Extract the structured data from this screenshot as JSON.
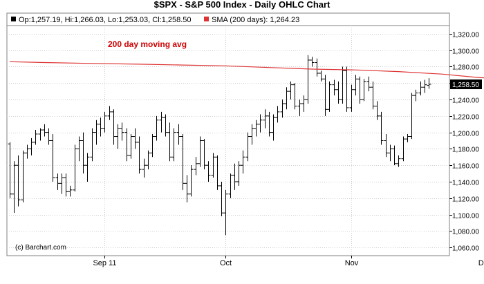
{
  "title": "$SPX - S&P 500 Index - Daily OHLC Chart",
  "legend": {
    "ohlc_text": "Op:1,257.19, Hi:1,266.03, Lo:1,253.03, Cl:1,258.50",
    "sma_text": "SMA (200 days): 1,264.23"
  },
  "colors": {
    "price": "#000000",
    "sma": "#dd3333",
    "grid": "#cfcfcf",
    "last_tag": "#000000"
  },
  "annotation": "200 day moving avg",
  "last_price_label": "1,258.50",
  "credit": "(c) Barchart.com",
  "chart_data": {
    "type": "ohlc",
    "ylim": [
      1050,
      1330
    ],
    "y_ticks": [
      "1,060.00",
      "1,080.00",
      "1,100.00",
      "1,120.00",
      "1,140.00",
      "1,160.00",
      "1,180.00",
      "1,200.00",
      "1,220.00",
      "1,240.00",
      "1,260.00",
      "1,280.00",
      "1,300.00",
      "1,320.00"
    ],
    "y_tick_values": [
      1060,
      1080,
      1100,
      1120,
      1140,
      1160,
      1180,
      1200,
      1220,
      1240,
      1260,
      1280,
      1300,
      1320
    ],
    "x_ticks": [
      {
        "label": "Sep 11",
        "index": 22
      },
      {
        "label": "Oct",
        "index": 50
      },
      {
        "label": "Nov",
        "index": 79
      },
      {
        "label": "Dec",
        "index": 110
      }
    ],
    "grid": true,
    "ohlc": [
      [
        1186,
        1188,
        1120,
        1125
      ],
      [
        1125,
        1165,
        1102,
        1160
      ],
      [
        1160,
        1172,
        1110,
        1118
      ],
      [
        1118,
        1178,
        1115,
        1175
      ],
      [
        1175,
        1185,
        1168,
        1180
      ],
      [
        1180,
        1193,
        1172,
        1188
      ],
      [
        1188,
        1203,
        1185,
        1198
      ],
      [
        1198,
        1205,
        1190,
        1203
      ],
      [
        1203,
        1210,
        1195,
        1200
      ],
      [
        1200,
        1205,
        1185,
        1190
      ],
      [
        1190,
        1198,
        1140,
        1145
      ],
      [
        1145,
        1150,
        1130,
        1138
      ],
      [
        1138,
        1150,
        1125,
        1145
      ],
      [
        1145,
        1150,
        1122,
        1128
      ],
      [
        1128,
        1135,
        1122,
        1130
      ],
      [
        1130,
        1185,
        1128,
        1180
      ],
      [
        1180,
        1195,
        1165,
        1190
      ],
      [
        1190,
        1200,
        1150,
        1160
      ],
      [
        1160,
        1175,
        1140,
        1170
      ],
      [
        1170,
        1205,
        1165,
        1200
      ],
      [
        1200,
        1215,
        1185,
        1210
      ],
      [
        1210,
        1218,
        1195,
        1205
      ],
      [
        1205,
        1225,
        1200,
        1220
      ],
      [
        1220,
        1232,
        1215,
        1225
      ],
      [
        1225,
        1228,
        1185,
        1195
      ],
      [
        1195,
        1210,
        1180,
        1205
      ],
      [
        1205,
        1212,
        1190,
        1200
      ],
      [
        1200,
        1205,
        1165,
        1172
      ],
      [
        1172,
        1198,
        1168,
        1195
      ],
      [
        1195,
        1205,
        1180,
        1188
      ],
      [
        1188,
        1195,
        1150,
        1155
      ],
      [
        1155,
        1168,
        1145,
        1160
      ],
      [
        1160,
        1178,
        1155,
        1175
      ],
      [
        1175,
        1198,
        1170,
        1195
      ],
      [
        1195,
        1220,
        1190,
        1215
      ],
      [
        1215,
        1225,
        1200,
        1218
      ],
      [
        1218,
        1222,
        1195,
        1200
      ],
      [
        1200,
        1212,
        1165,
        1170
      ],
      [
        1170,
        1205,
        1165,
        1200
      ],
      [
        1200,
        1210,
        1185,
        1195
      ],
      [
        1195,
        1198,
        1130,
        1138
      ],
      [
        1138,
        1148,
        1115,
        1125
      ],
      [
        1125,
        1160,
        1122,
        1155
      ],
      [
        1155,
        1170,
        1148,
        1162
      ],
      [
        1162,
        1195,
        1158,
        1190
      ],
      [
        1190,
        1192,
        1155,
        1160
      ],
      [
        1160,
        1165,
        1140,
        1148
      ],
      [
        1148,
        1175,
        1145,
        1170
      ],
      [
        1170,
        1172,
        1130,
        1135
      ],
      [
        1135,
        1140,
        1098,
        1102
      ],
      [
        1102,
        1130,
        1075,
        1125
      ],
      [
        1125,
        1150,
        1120,
        1148
      ],
      [
        1148,
        1162,
        1130,
        1140
      ],
      [
        1140,
        1165,
        1135,
        1160
      ],
      [
        1160,
        1178,
        1150,
        1170
      ],
      [
        1170,
        1200,
        1165,
        1195
      ],
      [
        1195,
        1210,
        1185,
        1205
      ],
      [
        1205,
        1215,
        1195,
        1210
      ],
      [
        1210,
        1222,
        1200,
        1215
      ],
      [
        1215,
        1228,
        1205,
        1220
      ],
      [
        1220,
        1225,
        1195,
        1200
      ],
      [
        1200,
        1222,
        1190,
        1218
      ],
      [
        1218,
        1232,
        1212,
        1225
      ],
      [
        1225,
        1240,
        1218,
        1235
      ],
      [
        1235,
        1255,
        1228,
        1250
      ],
      [
        1250,
        1262,
        1240,
        1258
      ],
      [
        1258,
        1260,
        1228,
        1232
      ],
      [
        1232,
        1240,
        1220,
        1235
      ],
      [
        1235,
        1245,
        1225,
        1240
      ],
      [
        1240,
        1294,
        1235,
        1288
      ],
      [
        1288,
        1292,
        1280,
        1285
      ],
      [
        1285,
        1290,
        1268,
        1272
      ],
      [
        1272,
        1275,
        1262,
        1265
      ],
      [
        1265,
        1270,
        1220,
        1228
      ],
      [
        1228,
        1262,
        1225,
        1258
      ],
      [
        1258,
        1264,
        1245,
        1252
      ],
      [
        1252,
        1262,
        1235,
        1240
      ],
      [
        1240,
        1280,
        1235,
        1275
      ],
      [
        1275,
        1280,
        1225,
        1230
      ],
      [
        1230,
        1258,
        1225,
        1252
      ],
      [
        1252,
        1270,
        1245,
        1265
      ],
      [
        1265,
        1268,
        1235,
        1240
      ],
      [
        1240,
        1265,
        1238,
        1262
      ],
      [
        1262,
        1268,
        1250,
        1255
      ],
      [
        1255,
        1262,
        1228,
        1232
      ],
      [
        1232,
        1238,
        1215,
        1220
      ],
      [
        1220,
        1225,
        1185,
        1190
      ],
      [
        1190,
        1198,
        1170,
        1175
      ],
      [
        1175,
        1185,
        1165,
        1180
      ],
      [
        1180,
        1184,
        1160,
        1162
      ],
      [
        1162,
        1172,
        1158,
        1168
      ],
      [
        1168,
        1195,
        1165,
        1192
      ],
      [
        1192,
        1198,
        1188,
        1195
      ],
      [
        1195,
        1248,
        1192,
        1245
      ],
      [
        1245,
        1252,
        1238,
        1248
      ],
      [
        1248,
        1262,
        1245,
        1255
      ],
      [
        1255,
        1264,
        1248,
        1258
      ],
      [
        1257.19,
        1266.03,
        1253.03,
        1258.5
      ]
    ],
    "sma": [
      [
        0,
        1286
      ],
      [
        8,
        1285
      ],
      [
        18,
        1284
      ],
      [
        30,
        1283
      ],
      [
        40,
        1282
      ],
      [
        50,
        1281
      ],
      [
        60,
        1279
      ],
      [
        70,
        1277
      ],
      [
        80,
        1276
      ],
      [
        90,
        1274
      ],
      [
        100,
        1271
      ],
      [
        108,
        1267
      ],
      [
        116,
        1264.23
      ]
    ]
  }
}
